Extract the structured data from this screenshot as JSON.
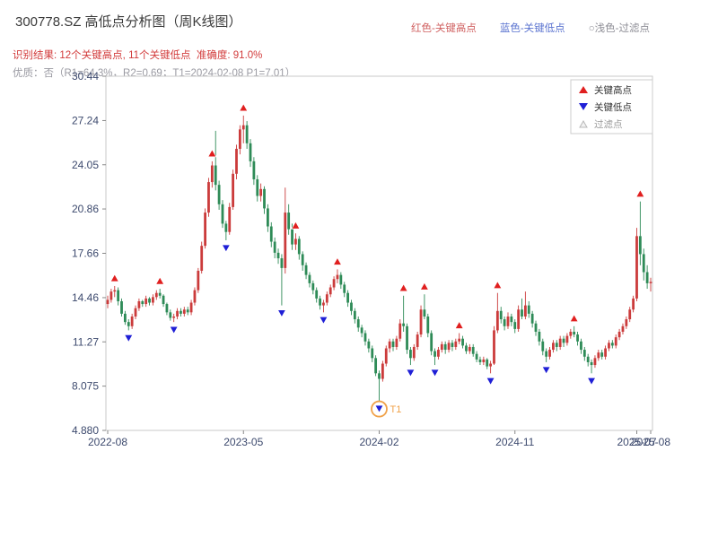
{
  "header": {
    "title": "300778.SZ 高低点分析图（周K线图）",
    "legend_top": [
      {
        "label": "红色-关键高点",
        "color": "#d06060"
      },
      {
        "label": "蓝色-关键低点",
        "color": "#5b74d0"
      },
      {
        "label": "○浅色-过滤点",
        "color": "#8e8e96"
      }
    ],
    "result_line": "识别结果: 12个关键高点, 11个关键低点  准确度: 91.0%",
    "quality_line": "优质：否（R1=64.3%，R2=0.69；T1=2024-02-08 P1=7.01）"
  },
  "chart_data": {
    "type": "candlestick",
    "instrument": "300778.SZ",
    "period": "weekly",
    "ylim": [
      4.88,
      30.44
    ],
    "y_ticks": [
      4.88,
      8.075,
      11.27,
      14.46,
      17.66,
      20.86,
      24.05,
      27.24,
      30.44
    ],
    "y_tick_labels": [
      "4.880",
      "8.075",
      "11.27",
      "14.46",
      "17.66",
      "20.86",
      "24.05",
      "27.24",
      "30.44"
    ],
    "x_ticks": [
      {
        "week": 0,
        "label": "2022-08"
      },
      {
        "week": 39,
        "label": "2023-05"
      },
      {
        "week": 78,
        "label": "2024-02"
      },
      {
        "week": 117,
        "label": "2024-11"
      },
      {
        "week": 152,
        "label": "2025-07"
      },
      {
        "week": 156,
        "label": "2025-08"
      }
    ],
    "tick_color": "#3d4a6e",
    "up_color": "#cb3b3b",
    "down_color": "#2e8b57",
    "high_marker_color": "#e01f1f",
    "low_marker_color": "#1f1fd6",
    "candles": [
      [
        14.0,
        14.6,
        13.7,
        14.3
      ],
      [
        14.3,
        15.1,
        14.1,
        14.9
      ],
      [
        14.9,
        15.3,
        14.5,
        15.0
      ],
      [
        15.0,
        15.2,
        13.9,
        14.2
      ],
      [
        14.2,
        14.4,
        13.1,
        13.3
      ],
      [
        13.3,
        13.5,
        12.5,
        12.7
      ],
      [
        12.7,
        12.9,
        12.1,
        12.4
      ],
      [
        12.4,
        13.3,
        12.2,
        13.1
      ],
      [
        13.1,
        13.9,
        12.9,
        13.7
      ],
      [
        13.7,
        14.4,
        13.5,
        14.2
      ],
      [
        14.2,
        14.3,
        13.8,
        14.0
      ],
      [
        14.0,
        14.6,
        13.8,
        14.4
      ],
      [
        14.4,
        14.5,
        13.9,
        14.1
      ],
      [
        14.1,
        14.7,
        13.9,
        14.5
      ],
      [
        14.5,
        15.0,
        14.3,
        14.8
      ],
      [
        14.8,
        15.1,
        14.4,
        14.6
      ],
      [
        14.6,
        14.7,
        13.8,
        14.0
      ],
      [
        14.0,
        14.1,
        13.2,
        13.4
      ],
      [
        13.4,
        13.6,
        12.8,
        13.0
      ],
      [
        13.0,
        13.3,
        12.7,
        13.1
      ],
      [
        13.1,
        13.7,
        12.9,
        13.5
      ],
      [
        13.5,
        13.7,
        13.1,
        13.3
      ],
      [
        13.3,
        13.8,
        13.1,
        13.6
      ],
      [
        13.6,
        13.8,
        13.2,
        13.4
      ],
      [
        13.4,
        14.3,
        13.2,
        14.1
      ],
      [
        14.1,
        15.2,
        13.9,
        15.0
      ],
      [
        15.0,
        16.6,
        14.8,
        16.4
      ],
      [
        16.4,
        18.5,
        16.2,
        18.2
      ],
      [
        18.2,
        20.9,
        18.0,
        20.6
      ],
      [
        20.6,
        23.1,
        20.3,
        22.8
      ],
      [
        22.8,
        24.3,
        22.4,
        24.0
      ],
      [
        24.0,
        26.5,
        22.2,
        22.6
      ],
      [
        22.6,
        22.9,
        20.8,
        21.2
      ],
      [
        21.2,
        21.5,
        19.5,
        19.8
      ],
      [
        19.8,
        20.0,
        18.6,
        19.2
      ],
      [
        19.2,
        21.3,
        19.0,
        21.0
      ],
      [
        21.0,
        23.7,
        20.8,
        23.4
      ],
      [
        23.4,
        25.5,
        23.0,
        25.2
      ],
      [
        25.2,
        26.9,
        24.8,
        26.6
      ],
      [
        26.6,
        27.6,
        25.6,
        26.9
      ],
      [
        26.9,
        27.2,
        25.2,
        25.6
      ],
      [
        25.6,
        25.9,
        23.9,
        24.3
      ],
      [
        24.3,
        24.6,
        22.6,
        23.0
      ],
      [
        23.0,
        23.3,
        21.4,
        21.8
      ],
      [
        21.8,
        22.7,
        21.4,
        22.3
      ],
      [
        22.3,
        22.5,
        20.5,
        20.9
      ],
      [
        20.9,
        21.2,
        19.2,
        19.6
      ],
      [
        19.6,
        19.9,
        18.1,
        18.5
      ],
      [
        18.5,
        18.8,
        17.3,
        17.7
      ],
      [
        17.7,
        18.0,
        16.9,
        17.3
      ],
      [
        17.3,
        17.6,
        13.9,
        16.6
      ],
      [
        16.6,
        22.4,
        16.2,
        20.6
      ],
      [
        20.6,
        21.2,
        19.0,
        19.4
      ],
      [
        19.4,
        19.8,
        17.9,
        18.3
      ],
      [
        18.3,
        19.1,
        17.9,
        18.7
      ],
      [
        18.7,
        18.9,
        17.2,
        17.6
      ],
      [
        17.6,
        17.8,
        16.4,
        16.8
      ],
      [
        16.8,
        17.0,
        15.8,
        16.1
      ],
      [
        16.1,
        16.3,
        15.2,
        15.5
      ],
      [
        15.5,
        15.7,
        14.7,
        15.0
      ],
      [
        15.0,
        15.2,
        14.1,
        14.4
      ],
      [
        14.4,
        14.6,
        13.6,
        13.9
      ],
      [
        13.9,
        14.3,
        13.4,
        14.1
      ],
      [
        14.1,
        14.9,
        13.9,
        14.7
      ],
      [
        14.7,
        15.4,
        14.5,
        15.2
      ],
      [
        15.2,
        16.0,
        15.0,
        15.8
      ],
      [
        15.8,
        16.5,
        15.5,
        16.1
      ],
      [
        16.1,
        16.3,
        15.1,
        15.4
      ],
      [
        15.4,
        15.6,
        14.5,
        14.8
      ],
      [
        14.8,
        15.0,
        13.8,
        14.1
      ],
      [
        14.1,
        14.3,
        13.2,
        13.5
      ],
      [
        13.5,
        13.7,
        12.6,
        12.9
      ],
      [
        12.9,
        13.1,
        12.0,
        12.3
      ],
      [
        12.3,
        12.5,
        11.6,
        11.9
      ],
      [
        11.9,
        12.1,
        11.0,
        11.3
      ],
      [
        11.3,
        11.5,
        10.5,
        10.8
      ],
      [
        10.8,
        11.0,
        9.8,
        10.1
      ],
      [
        10.1,
        10.3,
        8.8,
        9.0
      ],
      [
        9.0,
        9.2,
        7.01,
        8.6
      ],
      [
        8.6,
        9.9,
        8.4,
        9.7
      ],
      [
        9.7,
        11.0,
        9.5,
        10.8
      ],
      [
        10.8,
        11.5,
        10.5,
        11.3
      ],
      [
        11.3,
        11.5,
        10.6,
        10.9
      ],
      [
        10.9,
        11.7,
        10.7,
        11.5
      ],
      [
        11.5,
        12.9,
        11.3,
        12.6
      ],
      [
        12.6,
        14.6,
        12.0,
        12.4
      ],
      [
        12.4,
        12.6,
        10.4,
        10.7
      ],
      [
        10.7,
        10.9,
        9.6,
        10.1
      ],
      [
        10.1,
        11.1,
        9.9,
        10.9
      ],
      [
        10.9,
        12.0,
        10.7,
        11.8
      ],
      [
        11.8,
        13.9,
        11.6,
        13.6
      ],
      [
        13.6,
        14.7,
        12.9,
        13.1
      ],
      [
        13.1,
        13.3,
        11.6,
        11.9
      ],
      [
        11.9,
        12.1,
        10.3,
        10.6
      ],
      [
        10.6,
        10.8,
        9.6,
        10.2
      ],
      [
        10.2,
        10.9,
        10.0,
        10.7
      ],
      [
        10.7,
        11.3,
        10.5,
        11.1
      ],
      [
        11.1,
        11.3,
        10.4,
        10.7
      ],
      [
        10.7,
        11.4,
        10.5,
        11.2
      ],
      [
        11.2,
        11.4,
        10.6,
        10.9
      ],
      [
        10.9,
        11.5,
        10.7,
        11.3
      ],
      [
        11.3,
        11.9,
        11.1,
        11.5
      ],
      [
        11.5,
        11.7,
        10.8,
        11.0
      ],
      [
        11.0,
        11.2,
        10.4,
        10.6
      ],
      [
        10.6,
        11.1,
        10.4,
        10.9
      ],
      [
        10.9,
        11.1,
        10.2,
        10.4
      ],
      [
        10.4,
        10.6,
        9.8,
        10.0
      ],
      [
        10.0,
        10.2,
        9.6,
        9.8
      ],
      [
        9.8,
        10.2,
        9.6,
        10.0
      ],
      [
        10.0,
        10.1,
        9.3,
        9.5
      ],
      [
        9.5,
        9.9,
        9.0,
        9.7
      ],
      [
        9.7,
        12.4,
        9.6,
        12.1
      ],
      [
        12.1,
        14.8,
        11.9,
        13.5
      ],
      [
        13.5,
        13.8,
        12.6,
        12.9
      ],
      [
        12.9,
        13.1,
        12.1,
        12.4
      ],
      [
        12.4,
        13.4,
        12.2,
        13.1
      ],
      [
        13.1,
        13.3,
        12.4,
        12.7
      ],
      [
        12.7,
        12.9,
        11.9,
        12.2
      ],
      [
        12.2,
        13.9,
        12.0,
        13.6
      ],
      [
        13.6,
        14.4,
        12.9,
        13.1
      ],
      [
        13.1,
        14.9,
        12.9,
        13.9
      ],
      [
        13.9,
        14.2,
        13.0,
        13.3
      ],
      [
        13.3,
        13.5,
        12.3,
        12.6
      ],
      [
        12.6,
        12.8,
        11.7,
        12.0
      ],
      [
        12.0,
        12.2,
        11.0,
        11.3
      ],
      [
        11.3,
        11.5,
        10.3,
        10.6
      ],
      [
        10.6,
        10.8,
        9.8,
        10.2
      ],
      [
        10.2,
        10.9,
        10.0,
        10.7
      ],
      [
        10.7,
        11.4,
        10.5,
        11.2
      ],
      [
        11.2,
        11.4,
        10.6,
        10.9
      ],
      [
        10.9,
        11.7,
        10.7,
        11.5
      ],
      [
        11.5,
        11.7,
        10.9,
        11.2
      ],
      [
        11.2,
        11.9,
        11.0,
        11.7
      ],
      [
        11.7,
        12.2,
        11.5,
        12.0
      ],
      [
        12.0,
        12.4,
        11.6,
        11.8
      ],
      [
        11.8,
        12.0,
        11.0,
        11.3
      ],
      [
        11.3,
        11.5,
        10.4,
        10.7
      ],
      [
        10.7,
        10.9,
        9.9,
        10.2
      ],
      [
        10.2,
        10.4,
        9.5,
        9.8
      ],
      [
        9.8,
        10.0,
        9.0,
        9.6
      ],
      [
        9.6,
        10.3,
        9.4,
        10.1
      ],
      [
        10.1,
        10.7,
        9.9,
        10.5
      ],
      [
        10.5,
        10.7,
        10.0,
        10.2
      ],
      [
        10.2,
        11.0,
        10.0,
        10.8
      ],
      [
        10.8,
        11.4,
        10.6,
        11.2
      ],
      [
        11.2,
        11.4,
        10.8,
        11.0
      ],
      [
        11.0,
        11.8,
        10.8,
        11.6
      ],
      [
        11.6,
        12.2,
        11.4,
        12.0
      ],
      [
        12.0,
        12.6,
        11.8,
        12.4
      ],
      [
        12.4,
        13.1,
        12.2,
        12.9
      ],
      [
        12.9,
        13.8,
        12.7,
        13.6
      ],
      [
        13.6,
        14.6,
        13.4,
        14.4
      ],
      [
        14.4,
        19.5,
        14.2,
        18.9
      ],
      [
        18.9,
        21.4,
        16.8,
        17.6
      ],
      [
        17.6,
        18.0,
        15.7,
        16.3
      ],
      [
        16.3,
        16.8,
        15.1,
        15.5
      ],
      [
        15.5,
        15.9,
        14.9,
        15.6
      ]
    ],
    "key_highs": [
      {
        "week": 2,
        "price": 15.3
      },
      {
        "week": 15,
        "price": 15.1
      },
      {
        "week": 30,
        "price": 24.3
      },
      {
        "week": 39,
        "price": 27.6
      },
      {
        "week": 54,
        "price": 19.1
      },
      {
        "week": 66,
        "price": 16.5
      },
      {
        "week": 85,
        "price": 14.6
      },
      {
        "week": 91,
        "price": 14.7
      },
      {
        "week": 101,
        "price": 11.9
      },
      {
        "week": 112,
        "price": 14.8
      },
      {
        "week": 134,
        "price": 12.4
      },
      {
        "week": 153,
        "price": 21.4
      }
    ],
    "key_lows": [
      {
        "week": 6,
        "price": 12.1
      },
      {
        "week": 19,
        "price": 12.7
      },
      {
        "week": 34,
        "price": 18.6
      },
      {
        "week": 50,
        "price": 13.9
      },
      {
        "week": 62,
        "price": 13.4
      },
      {
        "week": 78,
        "price": 7.01
      },
      {
        "week": 87,
        "price": 9.6
      },
      {
        "week": 94,
        "price": 9.6
      },
      {
        "week": 110,
        "price": 9.0
      },
      {
        "week": 126,
        "price": 9.8
      },
      {
        "week": 139,
        "price": 9.0
      }
    ],
    "t1_marker": {
      "week": 78,
      "price": 7.01,
      "label": "T1",
      "color": "#f0a24a"
    },
    "legend_box": [
      {
        "label": "关键高点",
        "marker": "up-triangle",
        "color": "#e01f1f",
        "text_color": "#333333"
      },
      {
        "label": "关键低点",
        "marker": "down-triangle",
        "color": "#1f1fd6",
        "text_color": "#333333"
      },
      {
        "label": "过滤点",
        "marker": "filtered-triangle",
        "color": "#b8b8b8",
        "text_color": "#999999"
      }
    ]
  }
}
